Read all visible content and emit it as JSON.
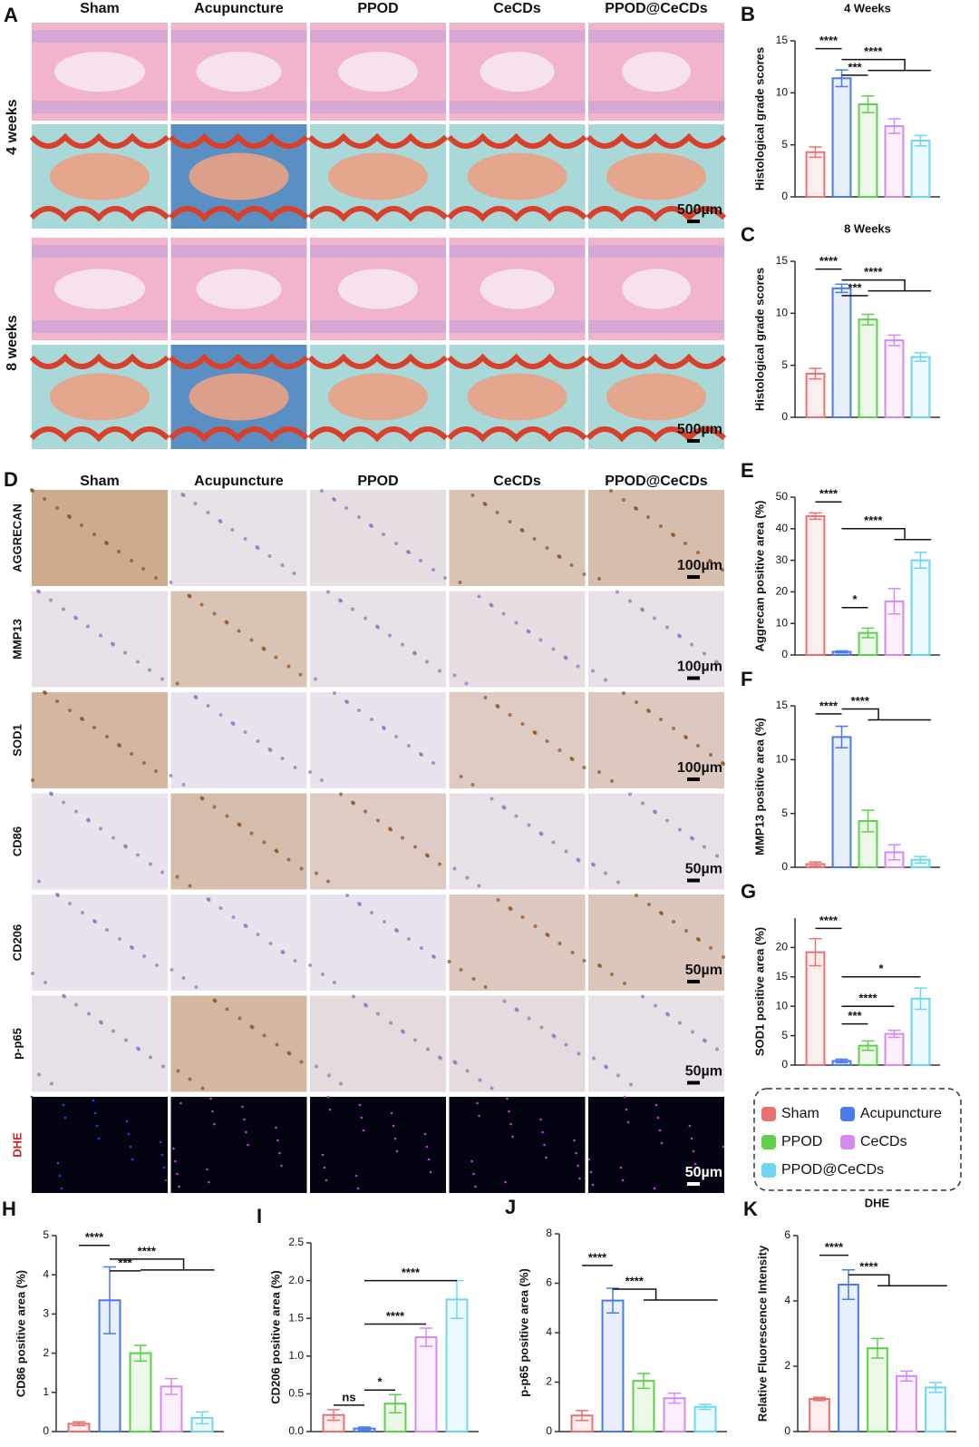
{
  "panel_A": {
    "label": "A",
    "columns": [
      "Sham",
      "Acupuncture",
      "PPOD",
      "CeCDs",
      "PPOD@CeCDs"
    ],
    "rows": [
      "4 weeks",
      "8 weeks"
    ],
    "scale_bars": [
      "500µm",
      "500µm"
    ]
  },
  "panel_D": {
    "label": "D",
    "columns": [
      "Sham",
      "Acupuncture",
      "PPOD",
      "CeCDs",
      "PPOD@CeCDs"
    ],
    "rows": [
      "AGGRECAN",
      "MMP13",
      "SOD1",
      "CD86",
      "CD206",
      "p-p65",
      "DHE"
    ],
    "scale_bars": [
      "100µm",
      "100µm",
      "100µm",
      "50µm",
      "50µm",
      "50µm",
      "50µm"
    ]
  },
  "legend": [
    {
      "name": "Sham",
      "color": "#e57373"
    },
    {
      "name": "Acupuncture",
      "color": "#4a7bea"
    },
    {
      "name": "PPOD",
      "color": "#5fcf4c"
    },
    {
      "name": "CeCDs",
      "color": "#d68af0"
    },
    {
      "name": "PPOD@CeCDs",
      "color": "#6fd6ef"
    }
  ],
  "chart_data": [
    {
      "type": "bar",
      "panel": "B",
      "title": "4 Weeks",
      "ylabel": "Histological grade scores",
      "values": [
        4.3,
        11.4,
        8.9,
        6.8,
        5.4
      ],
      "errors": [
        0.5,
        0.8,
        0.8,
        0.7,
        0.5
      ],
      "ylim": [
        0,
        15
      ],
      "yticks": [
        0,
        5,
        10,
        15
      ],
      "significance": [
        "****",
        "***",
        "****"
      ]
    },
    {
      "type": "bar",
      "panel": "C",
      "title": "8 Weeks",
      "ylabel": "Histological grade scores",
      "values": [
        4.2,
        12.4,
        9.4,
        7.4,
        5.8
      ],
      "errors": [
        0.5,
        0.4,
        0.5,
        0.5,
        0.4
      ],
      "ylim": [
        0,
        15
      ],
      "yticks": [
        0,
        5,
        10,
        15
      ],
      "significance": [
        "****",
        "***",
        "****"
      ]
    },
    {
      "type": "bar",
      "panel": "E",
      "ylabel": "Aggrecan positive area (%)",
      "values": [
        44,
        1,
        7,
        17,
        30
      ],
      "errors": [
        1,
        0.3,
        1.5,
        4,
        2.5
      ],
      "ylim": [
        0,
        50
      ],
      "yticks": [
        0,
        10,
        20,
        30,
        40,
        50
      ],
      "significance": [
        "****",
        "*",
        "****"
      ]
    },
    {
      "type": "bar",
      "panel": "F",
      "ylabel": "MMP13 positive area (%)",
      "values": [
        0.3,
        12.1,
        4.3,
        1.4,
        0.7
      ],
      "errors": [
        0.2,
        1,
        1,
        0.7,
        0.3
      ],
      "ylim": [
        0,
        15
      ],
      "yticks": [
        0,
        5,
        10,
        15
      ],
      "significance": [
        "****",
        "****"
      ]
    },
    {
      "type": "bar",
      "panel": "G",
      "ylabel": "SOD1 positive area (%)",
      "values": [
        19.2,
        0.7,
        3.3,
        5.3,
        11.3
      ],
      "errors": [
        2.3,
        0.3,
        0.8,
        0.6,
        1.8
      ],
      "ylim": [
        0,
        25
      ],
      "yticks": [
        0,
        5,
        10,
        15,
        20
      ],
      "significance": [
        "****",
        "*",
        "***",
        "****"
      ]
    },
    {
      "type": "bar",
      "panel": "H",
      "ylabel": "CD86 positive area (%)",
      "values": [
        0.2,
        3.35,
        2.0,
        1.15,
        0.35
      ],
      "errors": [
        0.05,
        0.85,
        0.2,
        0.2,
        0.15
      ],
      "ylim": [
        0,
        5
      ],
      "yticks": [
        0,
        1,
        2,
        3,
        4,
        5
      ],
      "significance": [
        "****",
        "***",
        "****"
      ]
    },
    {
      "type": "bar",
      "panel": "I",
      "ylabel": "CD206 positive area (%)",
      "values": [
        0.22,
        0.04,
        0.37,
        1.25,
        1.75
      ],
      "errors": [
        0.07,
        0.02,
        0.12,
        0.12,
        0.25
      ],
      "ylim": [
        0,
        2.5
      ],
      "yticks": [
        {
          "value": 0,
          "label": "0.0"
        },
        0.5,
        {
          "value": 1,
          "label": "1.0"
        },
        1.5,
        {
          "value": 2,
          "label": "2.0"
        },
        2.5
      ],
      "significance": [
        "ns",
        "*",
        "****",
        "****"
      ]
    },
    {
      "type": "bar",
      "panel": "J",
      "ylabel": "p-p65 positive area (%)",
      "values": [
        0.65,
        5.3,
        2.05,
        1.35,
        1.0
      ],
      "errors": [
        0.2,
        0.5,
        0.3,
        0.2,
        0.1
      ],
      "ylim": [
        0,
        8
      ],
      "yticks": [
        0,
        2,
        4,
        6,
        8
      ],
      "significance": [
        "****",
        "****"
      ]
    },
    {
      "type": "bar",
      "panel": "K",
      "title": "DHE",
      "ylabel": "Relative Fluorescence Intensity",
      "values": [
        1.0,
        4.5,
        2.55,
        1.7,
        1.35
      ],
      "errors": [
        0.05,
        0.45,
        0.3,
        0.15,
        0.15
      ],
      "ylim": [
        0,
        6
      ],
      "yticks": [
        0,
        2,
        4,
        6
      ],
      "significance": [
        "****",
        "****"
      ]
    }
  ]
}
